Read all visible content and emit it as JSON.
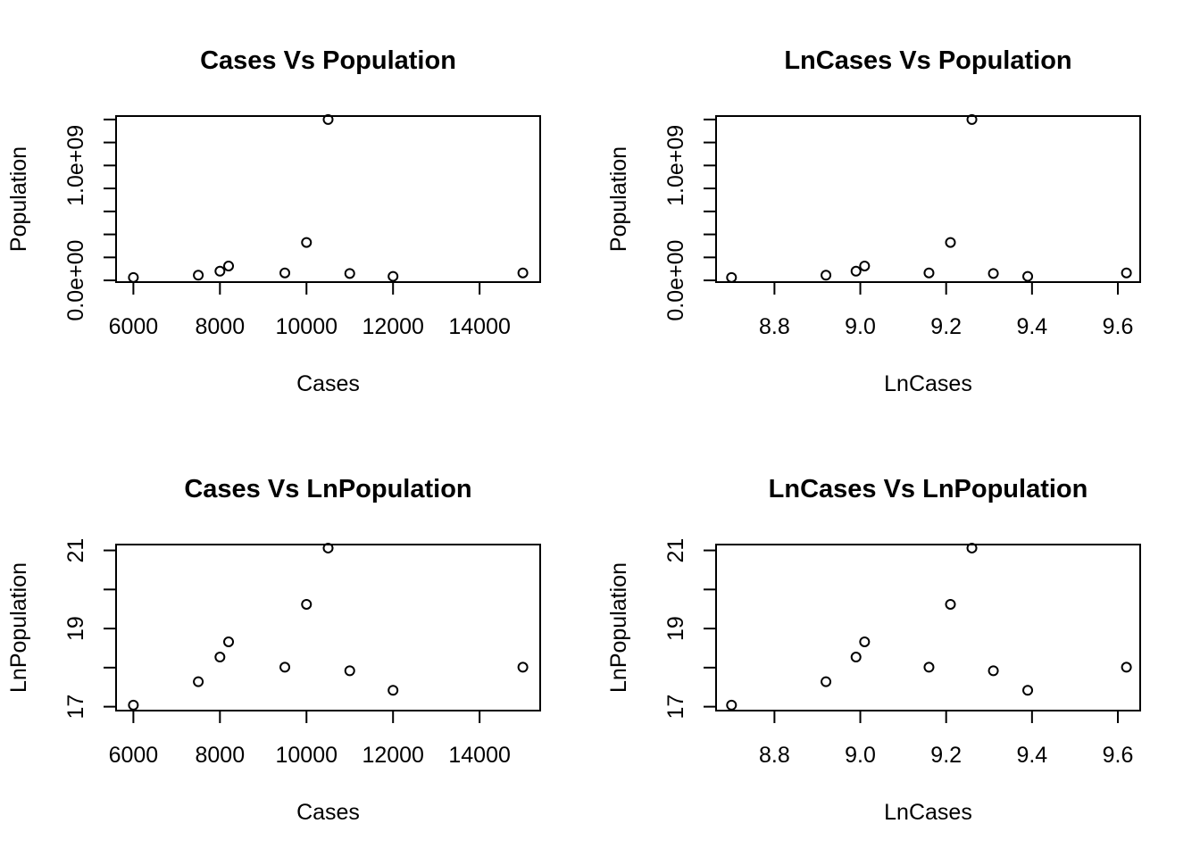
{
  "chart_data": [
    {
      "type": "scatter",
      "title": "Cases Vs Population",
      "xlabel": "Cases",
      "ylabel": "Population",
      "xlim": [
        5600,
        15400
      ],
      "ylim": [
        -15000000,
        1430000000
      ],
      "xticks": [
        6000,
        8000,
        10000,
        12000,
        14000
      ],
      "xtick_labels": [
        "6000",
        "8000",
        "10000",
        "12000",
        "14000"
      ],
      "yticks": [
        0,
        200000000,
        400000000,
        600000000,
        800000000,
        1000000000,
        1200000000,
        1400000000
      ],
      "ytick_labels": [
        {
          "value": 0,
          "label": "0.0e+00"
        },
        {
          "value": 1000000000,
          "label": "1.0e+09"
        }
      ],
      "x": [
        6000,
        7500,
        8000,
        8200,
        9500,
        10000,
        10500,
        11000,
        12000,
        15000
      ],
      "y": [
        25000000,
        45000000,
        80000000,
        125000000,
        65000000,
        330000000,
        1400000000,
        60000000,
        35000000,
        65000000
      ]
    },
    {
      "type": "scatter",
      "title": "LnCases Vs Population",
      "xlabel": "LnCases",
      "ylabel": "Population",
      "xlim": [
        8.664,
        9.652
      ],
      "ylim": [
        -15000000,
        1430000000
      ],
      "xticks": [
        8.8,
        9.0,
        9.2,
        9.4,
        9.6
      ],
      "xtick_labels": [
        "8.8",
        "9.0",
        "9.2",
        "9.4",
        "9.6"
      ],
      "yticks": [
        0,
        200000000,
        400000000,
        600000000,
        800000000,
        1000000000,
        1200000000,
        1400000000
      ],
      "ytick_labels": [
        {
          "value": 0,
          "label": "0.0e+00"
        },
        {
          "value": 1000000000,
          "label": "1.0e+09"
        }
      ],
      "x": [
        8.7,
        8.92,
        8.99,
        9.01,
        9.16,
        9.21,
        9.26,
        9.31,
        9.39,
        9.62
      ],
      "y": [
        25000000,
        45000000,
        80000000,
        125000000,
        65000000,
        330000000,
        1400000000,
        60000000,
        35000000,
        65000000
      ]
    },
    {
      "type": "scatter",
      "title": "Cases Vs LnPopulation",
      "xlabel": "Cases",
      "ylabel": "LnPopulation",
      "xlim": [
        5600,
        15400
      ],
      "ylim": [
        16.9,
        21.15
      ],
      "xticks": [
        6000,
        8000,
        10000,
        12000,
        14000
      ],
      "xtick_labels": [
        "6000",
        "8000",
        "10000",
        "12000",
        "14000"
      ],
      "yticks": [
        17,
        18,
        19,
        20,
        21
      ],
      "ytick_labels": [
        {
          "value": 17,
          "label": "17"
        },
        {
          "value": 19,
          "label": "19"
        },
        {
          "value": 21,
          "label": "21"
        }
      ],
      "x": [
        6000,
        7500,
        8000,
        8200,
        9500,
        10000,
        10500,
        11000,
        12000,
        15000
      ],
      "y": [
        17.04,
        17.64,
        18.27,
        18.66,
        18.01,
        19.62,
        21.06,
        17.92,
        17.42,
        18.01
      ]
    },
    {
      "type": "scatter",
      "title": "LnCases Vs LnPopulation",
      "xlabel": "LnCases",
      "ylabel": "LnPopulation",
      "xlim": [
        8.664,
        9.652
      ],
      "ylim": [
        16.9,
        21.15
      ],
      "xticks": [
        8.8,
        9.0,
        9.2,
        9.4,
        9.6
      ],
      "xtick_labels": [
        "8.8",
        "9.0",
        "9.2",
        "9.4",
        "9.6"
      ],
      "yticks": [
        17,
        18,
        19,
        20,
        21
      ],
      "ytick_labels": [
        {
          "value": 17,
          "label": "17"
        },
        {
          "value": 19,
          "label": "19"
        },
        {
          "value": 21,
          "label": "21"
        }
      ],
      "x": [
        8.7,
        8.92,
        8.99,
        9.01,
        9.16,
        9.21,
        9.26,
        9.31,
        9.39,
        9.62
      ],
      "y": [
        17.04,
        17.64,
        18.27,
        18.66,
        18.01,
        19.62,
        21.06,
        17.92,
        17.42,
        18.01
      ]
    }
  ]
}
